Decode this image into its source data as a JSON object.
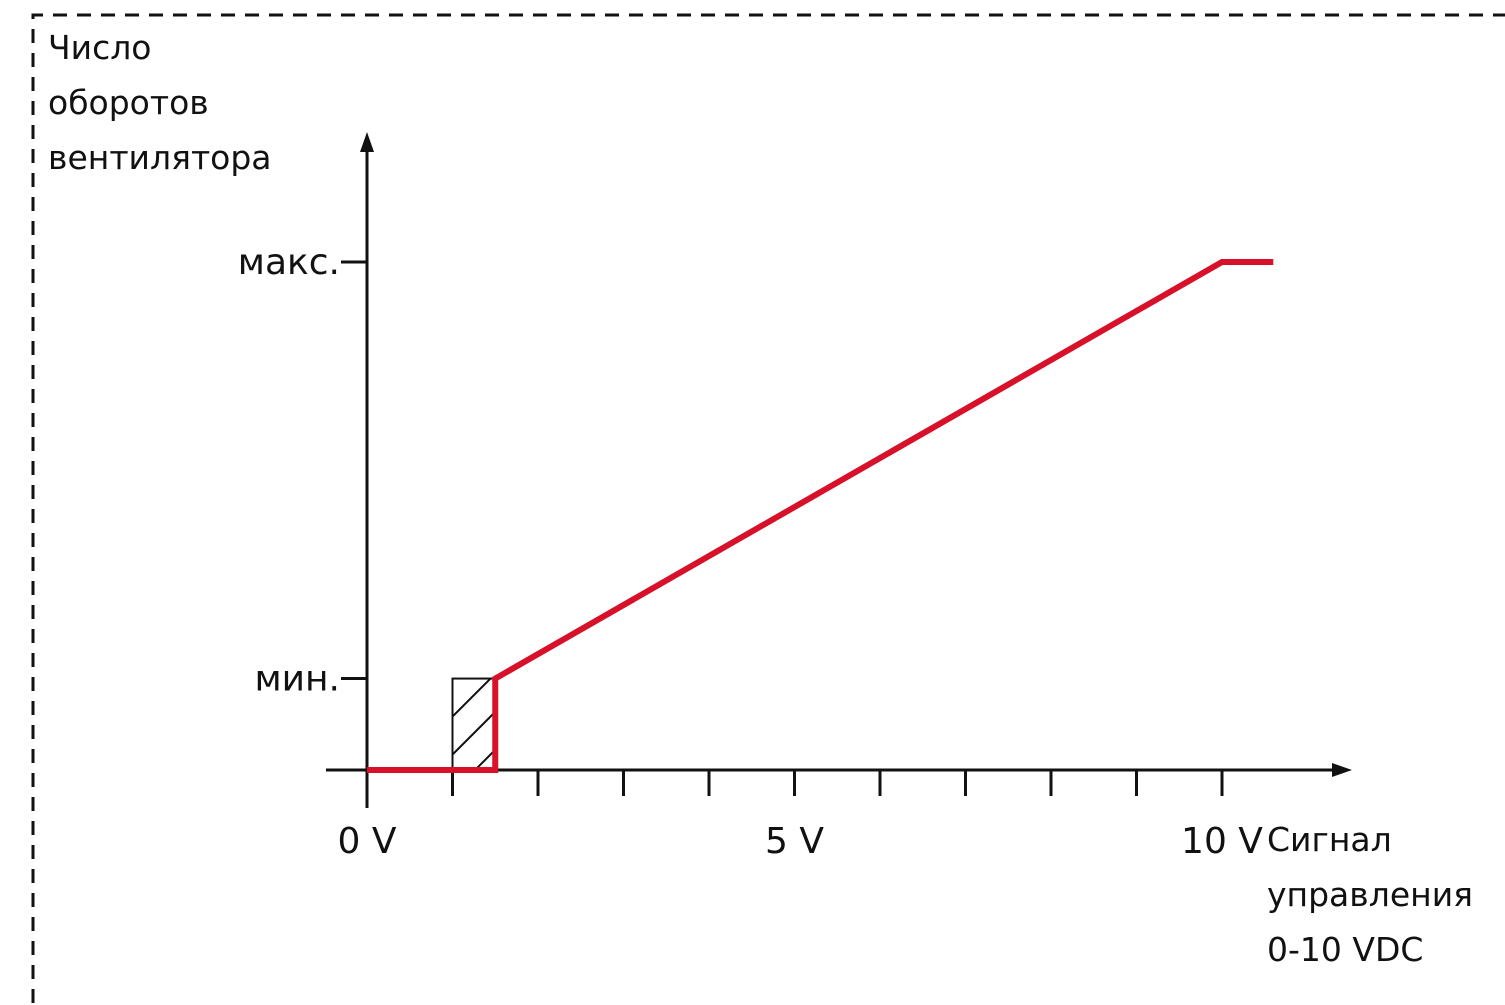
{
  "chart_data": {
    "type": "line",
    "ylabel": [
      "Число",
      "оборотов",
      "вентилятора"
    ],
    "xlabel": [
      "Сигнал",
      "управления",
      "0-10 VDC"
    ],
    "x_ticks": [
      0,
      1,
      2,
      3,
      4,
      5,
      6,
      7,
      8,
      9,
      10
    ],
    "x_tick_labels": [
      {
        "x": 0,
        "label": "0 V"
      },
      {
        "x": 5,
        "label": "5 V"
      },
      {
        "x": 10,
        "label": "10 V"
      }
    ],
    "y_levels": [
      {
        "key": "min",
        "value": 0.18,
        "label": "мин."
      },
      {
        "key": "max",
        "value": 1.0,
        "label": "макс."
      }
    ],
    "xlim": [
      0,
      10.6
    ],
    "ylim": [
      0,
      1.0
    ],
    "series": [
      {
        "color": "#d7112a",
        "points": [
          [
            0,
            0
          ],
          [
            1.5,
            0
          ],
          [
            1.5,
            0.18
          ],
          [
            10,
            1.0
          ],
          [
            10.6,
            1.0
          ]
        ]
      }
    ],
    "hysteresis_band": {
      "x_from": 1.0,
      "x_to": 1.5,
      "y_from": 0,
      "y_to": 0.18
    },
    "grid": false,
    "border_style": "dashed"
  }
}
